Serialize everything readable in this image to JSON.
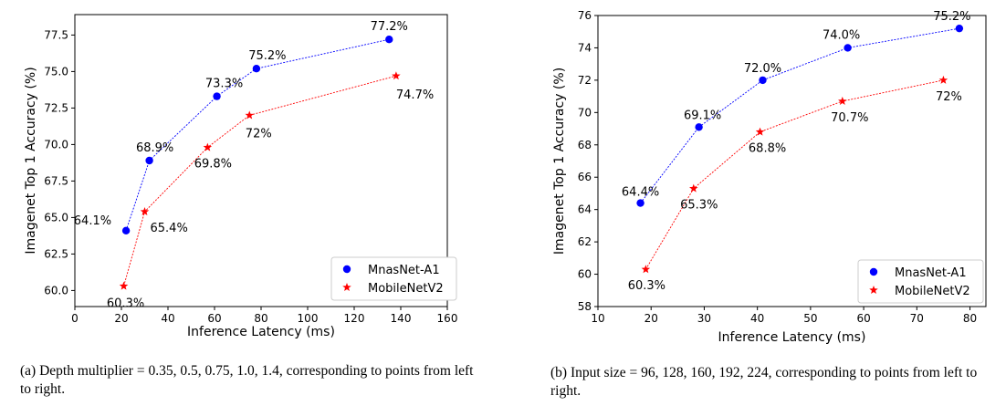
{
  "chart_data": [
    {
      "type": "scatter",
      "xlabel": "Inference Latency (ms)",
      "ylabel": "Imagenet Top 1 Accuracy (%)",
      "xlim": [
        0,
        160
      ],
      "ylim": [
        58.9,
        78.9
      ],
      "x_ticks": [
        "0",
        "20",
        "40",
        "60",
        "80",
        "100",
        "120",
        "140",
        "160"
      ],
      "y_ticks": [
        "60.0",
        "62.5",
        "65.0",
        "67.5",
        "70.0",
        "72.5",
        "75.0",
        "77.5"
      ],
      "legend": "bottom-right",
      "grid": false,
      "series": [
        {
          "name": "MnasNet-A1",
          "marker": "circle",
          "color": "#0000ff",
          "x": [
            22,
            32,
            61,
            78,
            135
          ],
          "y": [
            64.1,
            68.9,
            73.3,
            75.2,
            77.2
          ],
          "labels": [
            "64.1%",
            "68.9%",
            "73.3%",
            "75.2%",
            "77.2%"
          ]
        },
        {
          "name": "MobileNetV2",
          "marker": "star",
          "color": "#ff0000",
          "x": [
            21,
            30,
            57,
            75,
            138
          ],
          "y": [
            60.3,
            65.4,
            69.8,
            72.0,
            74.7
          ],
          "labels": [
            "60.3%",
            "65.4%",
            "69.8%",
            "72%",
            "74.7%"
          ]
        }
      ]
    },
    {
      "type": "scatter",
      "xlabel": "Inference Latency (ms)",
      "ylabel": "Imagenet Top 1 Accuracy (%)",
      "xlim": [
        10,
        83
      ],
      "ylim": [
        58,
        76
      ],
      "x_ticks": [
        "10",
        "20",
        "30",
        "40",
        "50",
        "60",
        "70",
        "80"
      ],
      "y_ticks": [
        "58",
        "60",
        "62",
        "64",
        "66",
        "68",
        "70",
        "72",
        "74",
        "76"
      ],
      "legend": "bottom-right",
      "grid": false,
      "series": [
        {
          "name": "MnasNet-A1",
          "marker": "circle",
          "color": "#0000ff",
          "x": [
            18,
            29,
            41,
            57,
            78
          ],
          "y": [
            64.4,
            69.1,
            72.0,
            74.0,
            75.2
          ],
          "labels": [
            "64.4%",
            "69.1%",
            "72.0%",
            "74.0%",
            "75.2%"
          ]
        },
        {
          "name": "MobileNetV2",
          "marker": "star",
          "color": "#ff0000",
          "x": [
            19,
            28,
            40.5,
            56,
            75
          ],
          "y": [
            60.3,
            65.3,
            68.8,
            70.7,
            72.0
          ],
          "labels": [
            "60.3%",
            "65.3%",
            "68.8%",
            "70.7%",
            "72%"
          ]
        }
      ]
    }
  ],
  "captions": [
    "(a) Depth multiplier = 0.35, 0.5, 0.75, 1.0, 1.4, corresponding to points from left to right.",
    "(b) Input size = 96, 128, 160, 192, 224, corresponding to points from left to right."
  ]
}
